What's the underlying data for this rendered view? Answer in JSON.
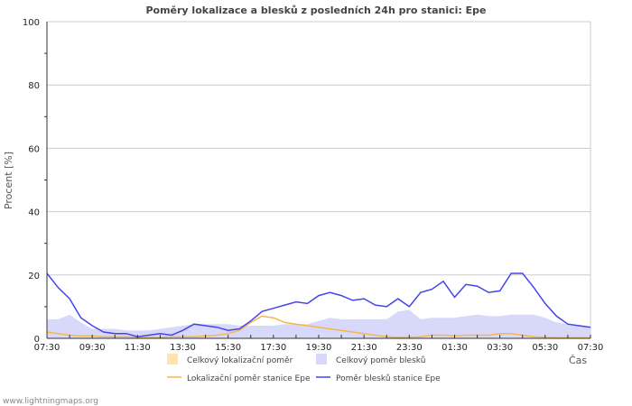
{
  "chart_data": {
    "type": "line",
    "title": "Poměry lokalizace a blesků z posledních 24h pro stanici: Epe",
    "xlabel": "Čas",
    "ylabel": "Procent   [%]",
    "ylim": [
      0,
      100
    ],
    "yticks": [
      "0",
      "20",
      "40",
      "60",
      "80",
      "100"
    ],
    "xticks": [
      "07:30",
      "09:30",
      "11:30",
      "13:30",
      "15:30",
      "17:30",
      "19:30",
      "21:30",
      "23:30",
      "01:30",
      "03:30",
      "05:30",
      "07:30"
    ],
    "x_step_minutes": 30,
    "grid": true,
    "legend_position": "bottom",
    "series": [
      {
        "name": "Celkový lokalizační poměr",
        "type": "area",
        "color": "#fde4b0",
        "values": [
          0.5,
          0.5,
          0.5,
          0.5,
          0.5,
          0.5,
          0.5,
          0.5,
          0.5,
          0.5,
          0.5,
          0.5,
          0.5,
          0.5,
          0.5,
          0.5,
          0.5,
          0.5,
          0.5,
          0.5,
          0.5,
          0.5,
          0.5,
          0.5,
          0.5,
          0.5,
          0.5,
          0.5,
          0.5,
          0.5,
          0.5,
          0.5,
          0.5,
          0.5,
          0.5,
          0.5,
          0.5,
          0.5,
          0.5,
          0.5,
          0.5,
          0.5,
          0.5,
          0.5,
          0.5,
          0.5,
          0.5,
          0.5,
          0.5
        ]
      },
      {
        "name": "Celkový poměr blesků",
        "type": "area",
        "color": "#d8d8fa",
        "values": [
          6,
          6,
          7.5,
          5,
          3,
          3,
          3,
          2.5,
          2.5,
          2.5,
          3,
          3.5,
          4,
          4.5,
          4.5,
          4.5,
          4.5,
          4,
          4,
          4,
          4,
          4.5,
          4.5,
          4.5,
          5.5,
          6.5,
          6,
          6,
          6,
          6,
          6,
          8.5,
          9,
          6,
          6.5,
          6.5,
          6.5,
          7,
          7.5,
          7,
          7,
          7.5,
          7.5,
          7.5,
          6.5,
          5,
          4.5,
          4,
          3.5
        ]
      },
      {
        "name": "Lokalizační poměr stanice Epe",
        "type": "line",
        "color": "#f5b84a",
        "values": [
          2,
          1.5,
          1,
          0.8,
          0.8,
          0.5,
          0.5,
          0.5,
          0.3,
          0.3,
          0.3,
          0.5,
          0.5,
          0.5,
          0.8,
          1,
          1.5,
          2.5,
          5,
          7,
          6.5,
          5,
          4.5,
          4,
          3.5,
          3,
          2.5,
          2,
          1.5,
          1,
          0.5,
          0.3,
          0.3,
          0.5,
          1,
          1,
          0.8,
          1,
          1,
          1,
          1.5,
          1.5,
          1,
          0.5,
          0.3,
          0.2,
          0.2,
          0.2,
          0.2
        ]
      },
      {
        "name": "Poměr blesků stanice Epe",
        "type": "line",
        "color": "#4444ee",
        "values": [
          20.5,
          16,
          12.5,
          6.5,
          4,
          2,
          1.5,
          1.5,
          0.5,
          1,
          1.5,
          1,
          2.5,
          4.5,
          4,
          3.5,
          2.5,
          3,
          5.5,
          8.5,
          9.5,
          10.5,
          11.5,
          11,
          13.5,
          14.5,
          13.5,
          12,
          12.5,
          10.5,
          10,
          12.5,
          10,
          14.5,
          15.5,
          18,
          13,
          17,
          16.5,
          14.5,
          15,
          20.5,
          20.5,
          16,
          11,
          7,
          4.5,
          4,
          3.5
        ]
      }
    ]
  },
  "footer": "www.lightningmaps.org"
}
